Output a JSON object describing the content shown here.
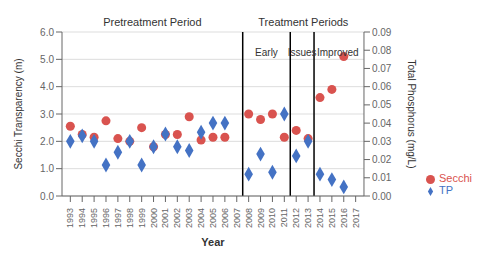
{
  "chart_data": {
    "type": "scatter",
    "xlabel": "Year",
    "ylabel": "Secchi Transparency (m)",
    "y2label": "Total Phosphorus (mg/L)",
    "x": [
      1993,
      1994,
      1995,
      1996,
      1997,
      1998,
      1999,
      2000,
      2001,
      2002,
      2003,
      2004,
      2005,
      2006,
      2008,
      2009,
      2010,
      2011,
      2012,
      2013,
      2014,
      2015,
      2016
    ],
    "series": [
      {
        "name": "Secchi",
        "color": "#d9534f",
        "marker": "circle",
        "values": [
          2.55,
          2.25,
          2.15,
          2.75,
          2.1,
          2.0,
          2.5,
          1.8,
          2.25,
          2.25,
          2.9,
          2.05,
          2.15,
          2.15,
          3.0,
          2.8,
          3.0,
          2.15,
          2.4,
          2.1,
          3.6,
          3.9,
          5.1
        ]
      },
      {
        "name": "TP",
        "color": "#4472c4",
        "marker": "diamond",
        "axis": "y2",
        "values": [
          0.03,
          0.033,
          0.03,
          0.017,
          0.024,
          0.03,
          0.017,
          0.027,
          0.034,
          0.027,
          0.025,
          0.035,
          0.04,
          0.04,
          0.012,
          0.023,
          0.013,
          0.045,
          0.022,
          0.03,
          0.012,
          0.009,
          0.005
        ]
      }
    ],
    "xlim": [
      1992.3,
      2017.7
    ],
    "xticks": [
      1993,
      1994,
      1995,
      1996,
      1997,
      1998,
      1999,
      2000,
      2001,
      2002,
      2003,
      2004,
      2005,
      2006,
      2007,
      2008,
      2009,
      2010,
      2011,
      2012,
      2013,
      2014,
      2015,
      2016,
      2017
    ],
    "ylim": [
      0.0,
      6.0
    ],
    "yticks": [
      {
        "value": 0,
        "label": "0.0"
      },
      {
        "value": 1,
        "label": "1.0"
      },
      {
        "value": 2,
        "label": "2.0"
      },
      {
        "value": 3,
        "label": "3.0"
      },
      {
        "value": 4,
        "label": "4.0"
      },
      {
        "value": 5,
        "label": "5.0"
      },
      {
        "value": 6,
        "label": "6.0"
      }
    ],
    "y2lim": [
      0.0,
      0.09
    ],
    "y2ticks": [
      {
        "value": 0,
        "label": "0.00"
      },
      {
        "value": 0.01,
        "label": "0.01"
      },
      {
        "value": 0.02,
        "label": "0.02"
      },
      {
        "value": 0.03,
        "label": "0.03"
      },
      {
        "value": 0.04,
        "label": "0.04"
      },
      {
        "value": 0.05,
        "label": "0.05"
      },
      {
        "value": 0.06,
        "label": "0.06"
      },
      {
        "value": 0.07,
        "label": "0.07"
      },
      {
        "value": 0.08,
        "label": "0.08"
      },
      {
        "value": 0.09,
        "label": "0.09"
      }
    ],
    "vlines": [
      2007.5,
      2011.5,
      2013.5
    ],
    "annotations": [
      {
        "text": "Pretreatment Period"
      },
      {
        "text": "Treatment Periods"
      },
      {
        "text": "Early",
        "x": 2009.5,
        "y": 5.5
      },
      {
        "text": "Issues",
        "x": 2012.5,
        "y": 5.5
      },
      {
        "text": "Improved",
        "x": 2015.5,
        "y": 5.5
      }
    ],
    "grid": true,
    "legend": "right"
  }
}
